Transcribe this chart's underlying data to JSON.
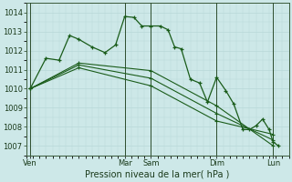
{
  "background_color": "#cde8e8",
  "grid_color_major": "#b8d8d8",
  "grid_color_minor": "#d0e8e8",
  "line_color": "#1a5c1a",
  "xlabel": "Pression niveau de la mer( hPa )",
  "ylim": [
    1006.5,
    1014.5
  ],
  "yticks": [
    1007,
    1008,
    1009,
    1010,
    1011,
    1012,
    1013,
    1014
  ],
  "xlim": [
    0,
    20
  ],
  "xtick_positions": [
    0.3,
    7.5,
    9.5,
    14.5,
    18.8
  ],
  "xtick_labels": [
    "Ven",
    "Mar",
    "Sam",
    "Dim",
    "Lun"
  ],
  "vlines": [
    0.3,
    7.5,
    9.5,
    14.5,
    18.8
  ],
  "s1_x": [
    0.3,
    1.5,
    2.5,
    3.3,
    4.0,
    5.0,
    6.0,
    6.8,
    7.5,
    8.2,
    8.8,
    9.5,
    10.2,
    10.8,
    11.3,
    11.8,
    12.5,
    13.2,
    13.8,
    14.5,
    15.2,
    15.8,
    16.5,
    17.0,
    17.5,
    18.0,
    18.5,
    18.8,
    19.2
  ],
  "s1_y": [
    1010.0,
    1011.6,
    1011.5,
    1012.8,
    1012.6,
    1012.2,
    1011.9,
    1012.3,
    1013.8,
    1013.75,
    1013.3,
    1013.3,
    1013.3,
    1013.1,
    1012.2,
    1012.1,
    1010.5,
    1010.3,
    1009.3,
    1010.6,
    1009.9,
    1009.2,
    1007.85,
    1007.85,
    1008.05,
    1008.4,
    1007.85,
    1007.2,
    1007.0
  ],
  "s2_x": [
    0.3,
    4.0,
    9.5,
    14.5,
    18.8
  ],
  "s2_y": [
    1010.0,
    1011.35,
    1010.95,
    1009.1,
    1007.0
  ],
  "s3_x": [
    0.3,
    4.0,
    9.5,
    14.5,
    18.8
  ],
  "s3_y": [
    1010.0,
    1011.25,
    1010.55,
    1008.7,
    1007.3
  ],
  "s4_x": [
    0.3,
    4.0,
    9.5,
    14.5,
    18.8
  ],
  "s4_y": [
    1010.0,
    1011.1,
    1010.15,
    1008.3,
    1007.6
  ]
}
